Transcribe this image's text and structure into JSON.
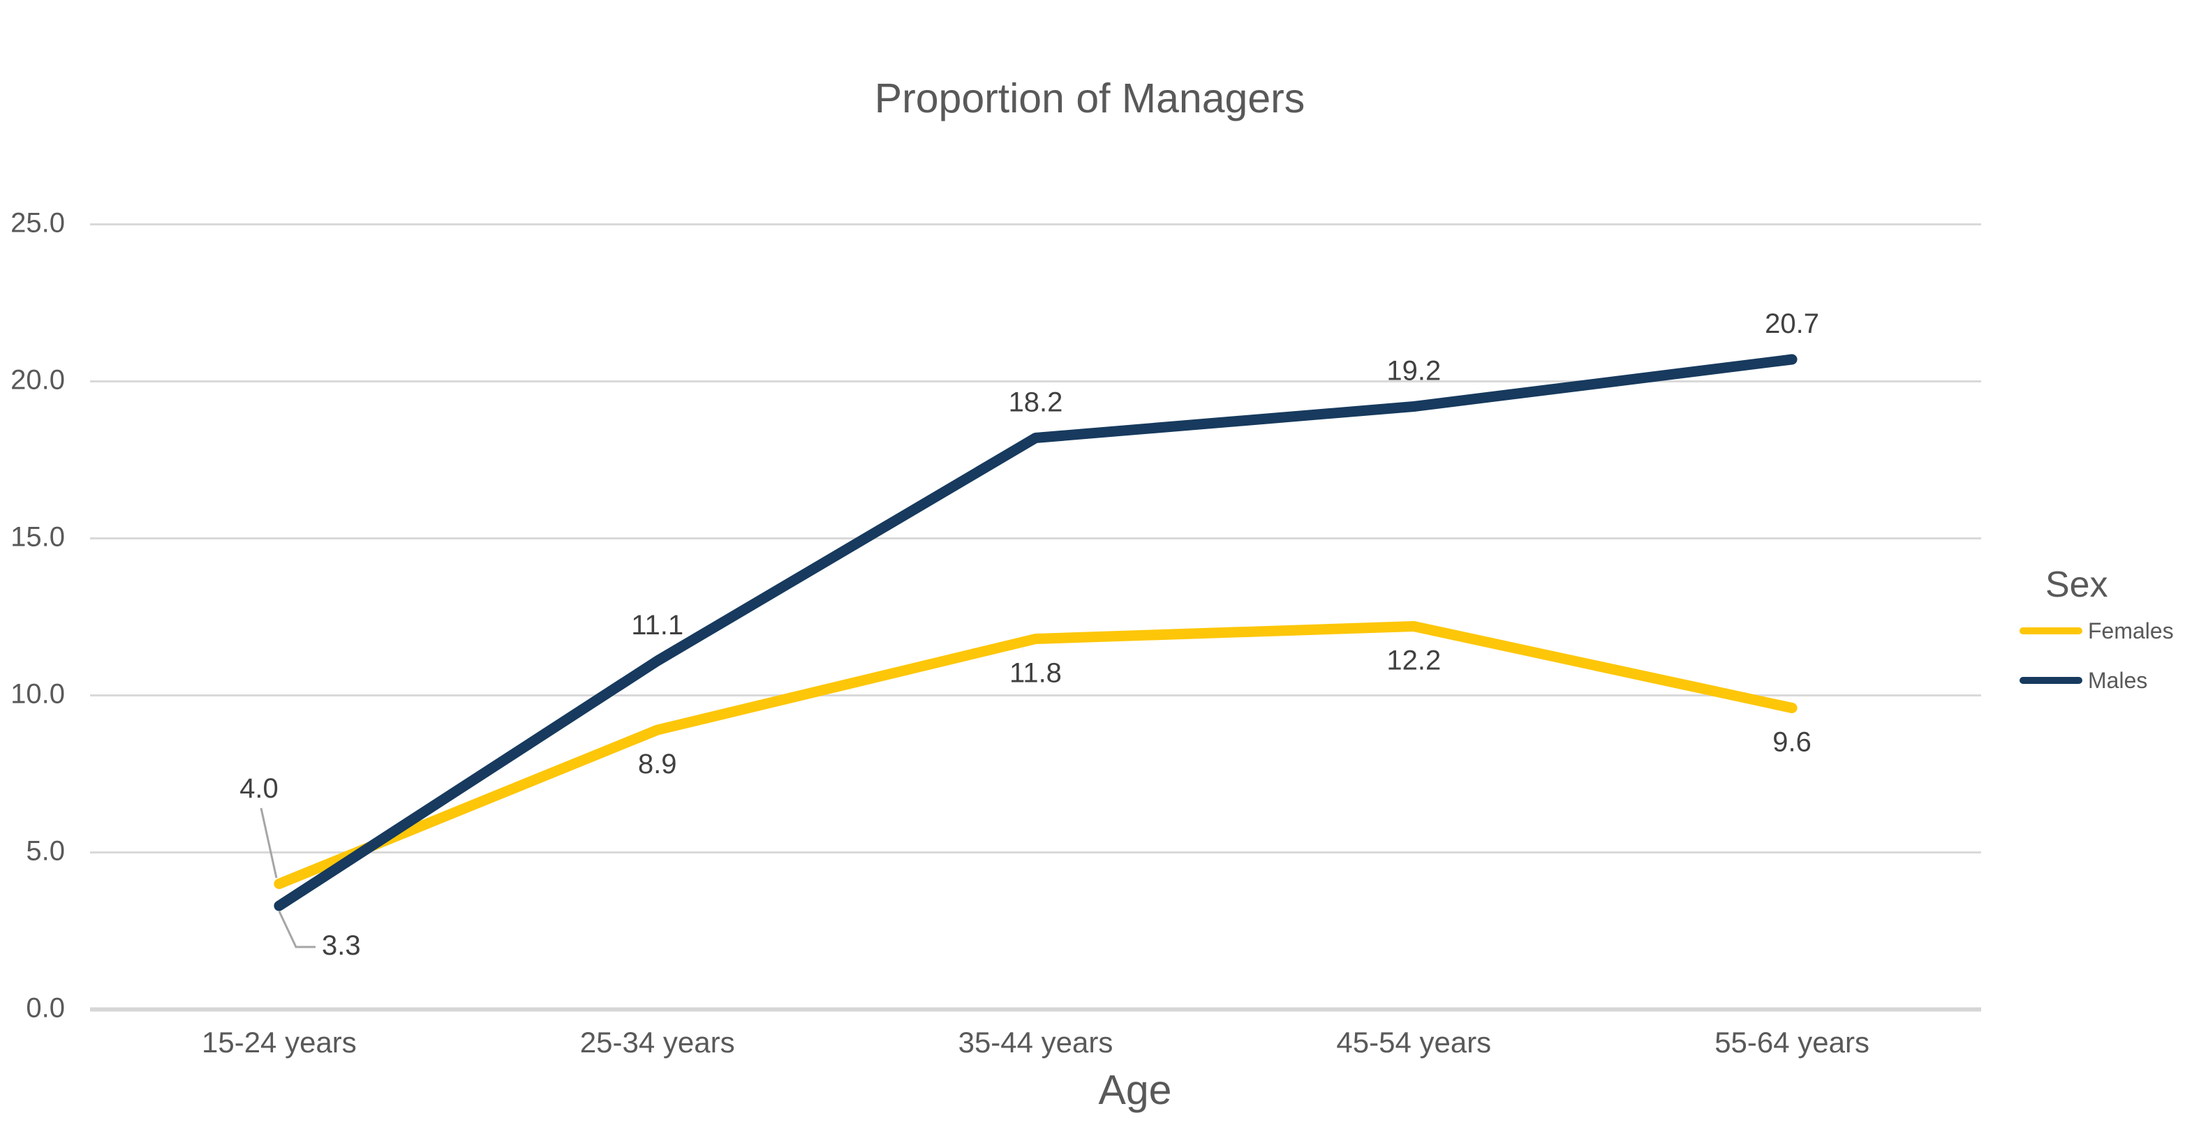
{
  "chart_data": {
    "type": "line",
    "title": "Proportion of Managers",
    "xlabel": "Age",
    "ylabel": "",
    "legend": {
      "title": "Sex",
      "position": "right"
    },
    "categories": [
      "15-24 years",
      "25-34 years",
      "35-44 years",
      "45-54 years",
      "55-64 years"
    ],
    "series": [
      {
        "name": "Females",
        "color": "#FDC608",
        "values": [
          4.0,
          8.9,
          11.8,
          12.2,
          9.6
        ],
        "labels": [
          "4.0",
          "8.9",
          "11.8",
          "12.2",
          "9.6"
        ]
      },
      {
        "name": "Males",
        "color": "#173A5E",
        "values": [
          3.3,
          11.1,
          18.2,
          19.2,
          20.7
        ],
        "labels": [
          "3.3",
          "11.1",
          "18.2",
          "19.2",
          "20.7"
        ]
      }
    ],
    "y_axis": {
      "range": [
        0,
        25
      ],
      "ticks": [
        25,
        20,
        15,
        10,
        5,
        0
      ],
      "tick_labels": [
        "25.0",
        "20.0",
        "15.0",
        "10.0",
        "5.0",
        "0.0"
      ],
      "grid": true
    },
    "styles": {
      "grid_color": "#D9D9D9",
      "axis_line_color": "#D6D6D6",
      "axis_text_color": "#595959",
      "title_color": "#595959",
      "data_label_color": "#404040",
      "leader_line_color": "#A6A6A6"
    }
  }
}
